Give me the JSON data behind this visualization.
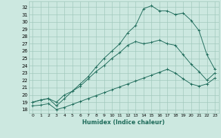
{
  "bg_color": "#cce8e0",
  "grid_color": "#a0c8bc",
  "line_color": "#1e6b5a",
  "xlabel": "Humidex (Indice chaleur)",
  "xlim": [
    -0.5,
    23.5
  ],
  "ylim": [
    17.5,
    32.8
  ],
  "yticks": [
    18,
    19,
    20,
    21,
    22,
    23,
    24,
    25,
    26,
    27,
    28,
    29,
    30,
    31,
    32
  ],
  "xticks": [
    0,
    1,
    2,
    3,
    4,
    5,
    6,
    7,
    8,
    9,
    10,
    11,
    12,
    13,
    14,
    15,
    16,
    17,
    18,
    19,
    20,
    21,
    22,
    23
  ],
  "curve1_x": [
    0,
    1,
    2,
    3,
    4,
    5,
    6,
    7,
    8,
    9,
    10,
    11,
    12,
    13,
    14,
    15,
    16,
    17,
    18,
    19,
    20,
    21,
    22,
    23
  ],
  "curve1_y": [
    19.0,
    19.3,
    19.5,
    18.5,
    19.5,
    20.5,
    21.5,
    22.5,
    23.8,
    25.0,
    26.0,
    27.0,
    28.5,
    29.5,
    31.8,
    32.2,
    31.5,
    31.5,
    31.0,
    31.2,
    30.2,
    28.8,
    25.5,
    23.5
  ],
  "curve2_x": [
    0,
    1,
    2,
    3,
    4,
    5,
    6,
    7,
    8,
    9,
    10,
    11,
    12,
    13,
    14,
    15,
    16,
    17,
    18,
    19,
    20,
    21,
    22,
    23
  ],
  "curve2_y": [
    19.0,
    19.3,
    19.5,
    19.0,
    20.0,
    20.5,
    21.2,
    22.2,
    23.2,
    24.0,
    25.0,
    25.8,
    26.8,
    27.3,
    27.0,
    27.2,
    27.5,
    27.0,
    26.8,
    25.5,
    24.2,
    23.2,
    22.0,
    23.0
  ],
  "curve3_x": [
    0,
    1,
    2,
    3,
    4,
    5,
    6,
    7,
    8,
    9,
    10,
    11,
    12,
    13,
    14,
    15,
    16,
    17,
    18,
    19,
    20,
    21,
    22,
    23
  ],
  "curve3_y": [
    18.5,
    18.6,
    18.8,
    18.0,
    18.3,
    18.7,
    19.1,
    19.5,
    19.9,
    20.3,
    20.7,
    21.1,
    21.5,
    21.9,
    22.3,
    22.7,
    23.1,
    23.5,
    23.0,
    22.2,
    21.5,
    21.2,
    21.5,
    22.3
  ]
}
